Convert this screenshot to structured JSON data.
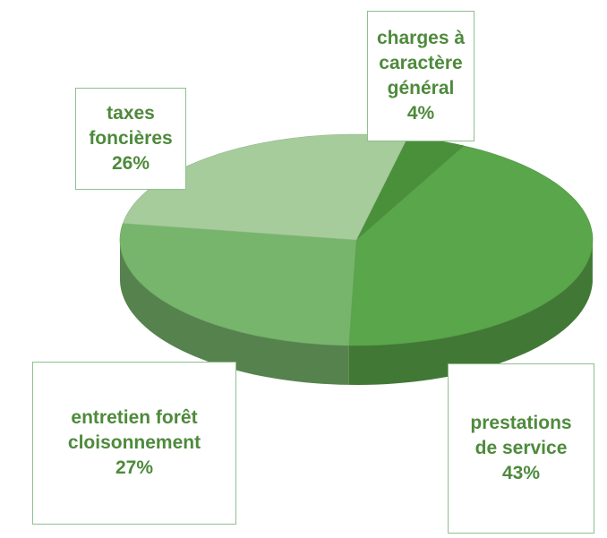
{
  "chart_data": {
    "type": "pie",
    "three_d": true,
    "slices": [
      {
        "label": "charges à caractère général",
        "value": 4,
        "percent_label": "4%",
        "color": "#4a8f3a",
        "label_lines": [
          "charges à",
          "caractère",
          "général"
        ]
      },
      {
        "label": "prestations de service",
        "value": 43,
        "percent_label": "43%",
        "color": "#5aa64a",
        "label_lines": [
          "prestations",
          "de service"
        ]
      },
      {
        "label": "entretien forêt cloisonnement",
        "value": 27,
        "percent_label": "27%",
        "color": "#78b56c",
        "label_lines": [
          "entretien forêt",
          "cloisonnement"
        ]
      },
      {
        "label": "taxes foncières",
        "value": 26,
        "percent_label": "26%",
        "color": "#a6cc9c",
        "label_lines": [
          "taxes",
          "foncières"
        ]
      }
    ],
    "data_labels": "category-and-percent-callouts"
  }
}
